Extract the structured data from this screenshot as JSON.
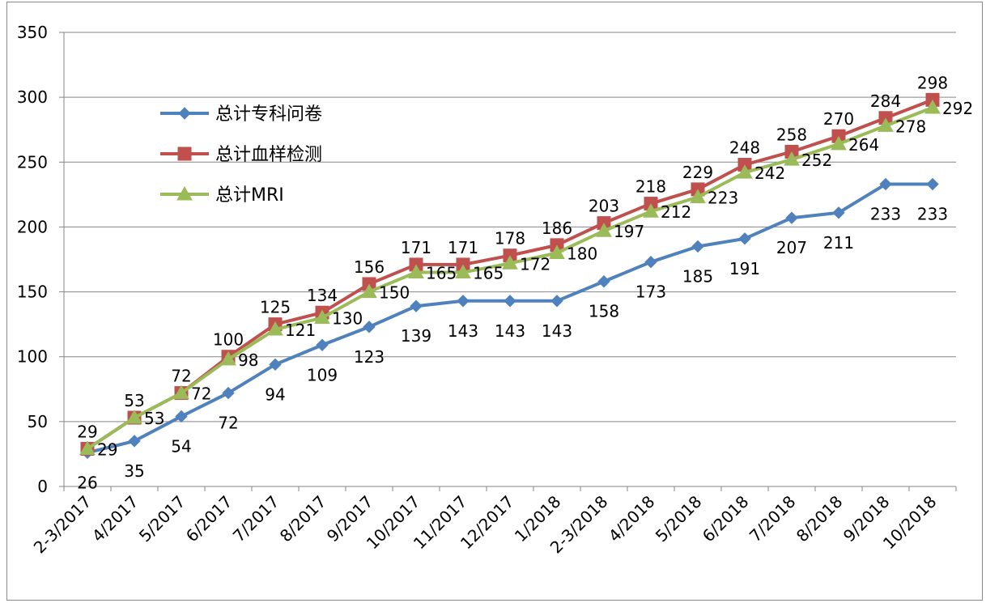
{
  "chart_data": {
    "type": "line",
    "title": "",
    "xlabel": "",
    "ylabel": "",
    "categories": [
      "2-3/2017",
      "4/2017",
      "5/2017",
      "6/2017",
      "7/2017",
      "8/2017",
      "9/2017",
      "10/2017",
      "11/2017",
      "12/2017",
      "1/2018",
      "2-3/2018",
      "4/2018",
      "5/2018",
      "6/2018",
      "7/2018",
      "8/2018",
      "9/2018",
      "10/2018"
    ],
    "ylim": [
      0,
      350
    ],
    "yticks": [
      0,
      50,
      100,
      150,
      200,
      250,
      300,
      350
    ],
    "grid": "horizontal",
    "legend": "top-left",
    "series": [
      {
        "name": "总计专科问卷",
        "color": "#4f81bd",
        "marker": "diamond",
        "values": [
          26,
          35,
          54,
          72,
          94,
          109,
          123,
          139,
          143,
          143,
          143,
          158,
          173,
          185,
          191,
          207,
          211,
          233,
          233
        ]
      },
      {
        "name": "总计血样检测",
        "color": "#c0504d",
        "marker": "square",
        "values": [
          29,
          53,
          72,
          100,
          125,
          134,
          156,
          171,
          171,
          178,
          186,
          203,
          218,
          229,
          248,
          258,
          270,
          284,
          298
        ]
      },
      {
        "name": "总计MRI",
        "color": "#9bbb59",
        "marker": "triangle",
        "values": [
          29,
          53,
          72,
          98,
          121,
          130,
          150,
          165,
          165,
          172,
          180,
          197,
          212,
          223,
          242,
          252,
          264,
          278,
          292
        ]
      }
    ]
  }
}
